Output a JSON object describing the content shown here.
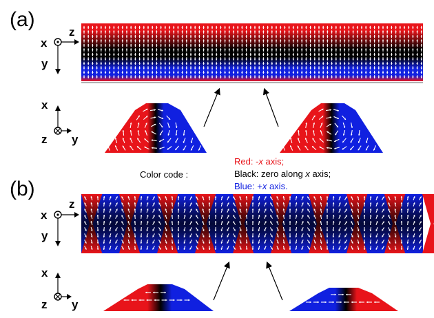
{
  "panels": [
    {
      "label": "(a)",
      "axes_top": {
        "h": "z",
        "v": "y",
        "origin": "x"
      },
      "axes_bottom": {
        "h": "y",
        "v": "x",
        "origin": "z"
      }
    },
    {
      "label": "(b)",
      "axes_top": {
        "h": "z",
        "v": "y",
        "origin": "x"
      },
      "axes_bottom": {
        "h": "y",
        "v": "x",
        "origin": "z"
      }
    }
  ],
  "legend": {
    "title": "Color code :",
    "red_prefix": "Red: -",
    "red_axis": "x",
    "red_suffix": " axis;",
    "black_prefix": "Black: zero along ",
    "black_axis": "x",
    "black_suffix": " axis;",
    "blue_prefix": "Blue: +",
    "blue_axis": "x",
    "blue_suffix": " axis."
  },
  "colors": {
    "red": "#e8141a",
    "black": "#000000",
    "blue": "#1020e0",
    "arrow": "#ffffff"
  }
}
